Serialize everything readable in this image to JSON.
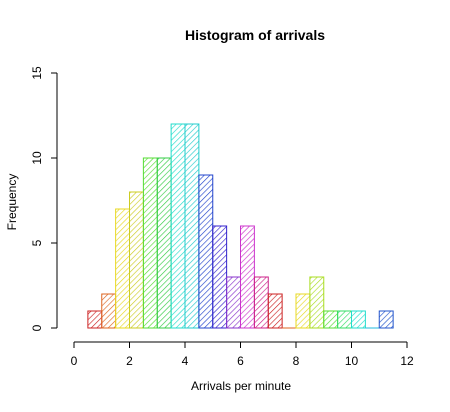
{
  "chart_data": {
    "type": "bar",
    "title": "Histogram of arrivals",
    "xlabel": "Arrivals per minute",
    "ylabel": "Frequency",
    "xlim": [
      0,
      12
    ],
    "ylim": [
      0,
      15
    ],
    "x_ticks": [
      "0",
      "2",
      "4",
      "6",
      "8",
      "10",
      "12"
    ],
    "y_ticks": [
      "0",
      "5",
      "10",
      "15"
    ],
    "bin_width": 0.5,
    "bin_starts": [
      0.5,
      1.0,
      1.5,
      2.0,
      2.5,
      3.0,
      3.5,
      4.0,
      4.5,
      5.0,
      5.5,
      6.0,
      6.5,
      7.0,
      7.5,
      8.0,
      8.5,
      9.0,
      9.5,
      10.0,
      10.5,
      11.0
    ],
    "values": [
      1,
      2,
      7,
      8,
      10,
      10,
      12,
      12,
      9,
      6,
      3,
      6,
      3,
      2,
      0,
      2,
      3,
      1,
      1,
      1,
      0,
      1
    ],
    "colors": [
      "#cc2222",
      "#dd6622",
      "#e8d822",
      "#cccc22",
      "#55dd33",
      "#33cc44",
      "#22ddcc",
      "#22cccc",
      "#2244cc",
      "#3322cc",
      "#8833cc",
      "#cc33cc",
      "#cc2288",
      "#cc2222",
      "#dd6622",
      "#e8d822",
      "#aadd22",
      "#55dd33",
      "#33dd66",
      "#22ddcc",
      "#22bbdd",
      "#2255cc"
    ],
    "fill_style": "hatched",
    "grid": false,
    "legend": "none"
  }
}
